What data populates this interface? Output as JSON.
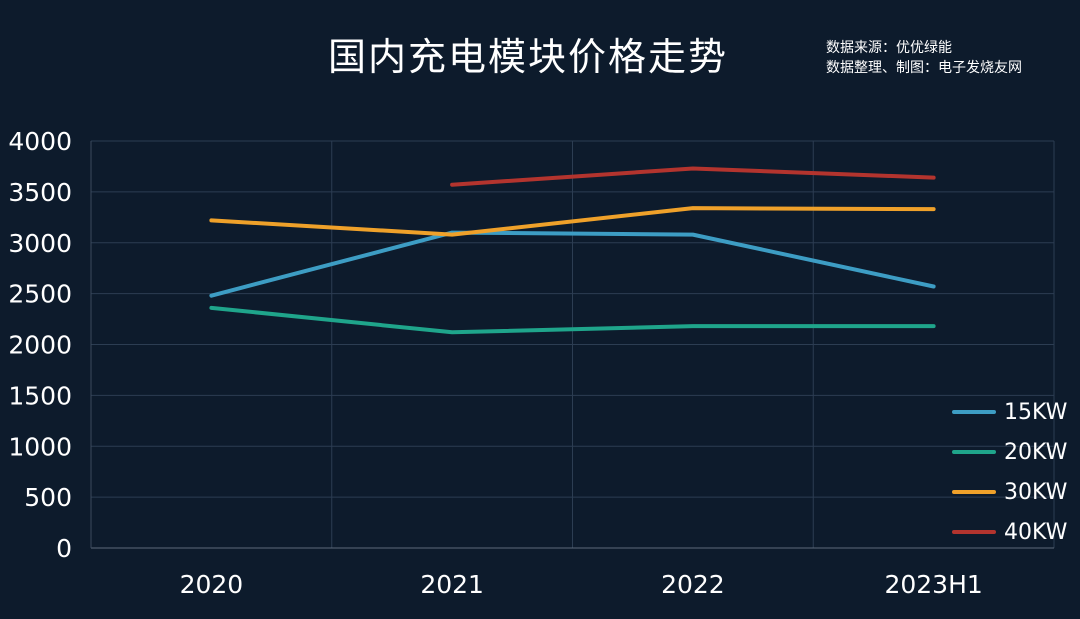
{
  "chart_data": {
    "type": "line",
    "title": "国内充电模块价格走势",
    "source_lines": [
      "数据来源：优优绿能",
      "数据整理、制图：电子发烧友网"
    ],
    "categories": [
      "2020",
      "2021",
      "2022",
      "2023H1"
    ],
    "ylim": [
      0,
      4000
    ],
    "yticks": [
      "0",
      "500",
      "1000",
      "1500",
      "2000",
      "2500",
      "3000",
      "3500",
      "4000"
    ],
    "grid": true,
    "legend_position": "right",
    "series": [
      {
        "name": "15KW",
        "color": "#3d9dc4",
        "values": [
          2480,
          3100,
          3080,
          2570
        ]
      },
      {
        "name": "20KW",
        "color": "#1fa58b",
        "values": [
          2360,
          2120,
          2180,
          2180
        ]
      },
      {
        "name": "30KW",
        "color": "#efa12a",
        "values": [
          3220,
          3080,
          3340,
          3330
        ]
      },
      {
        "name": "40KW",
        "color": "#b3342e",
        "values": [
          null,
          3570,
          3730,
          3640
        ]
      }
    ]
  }
}
